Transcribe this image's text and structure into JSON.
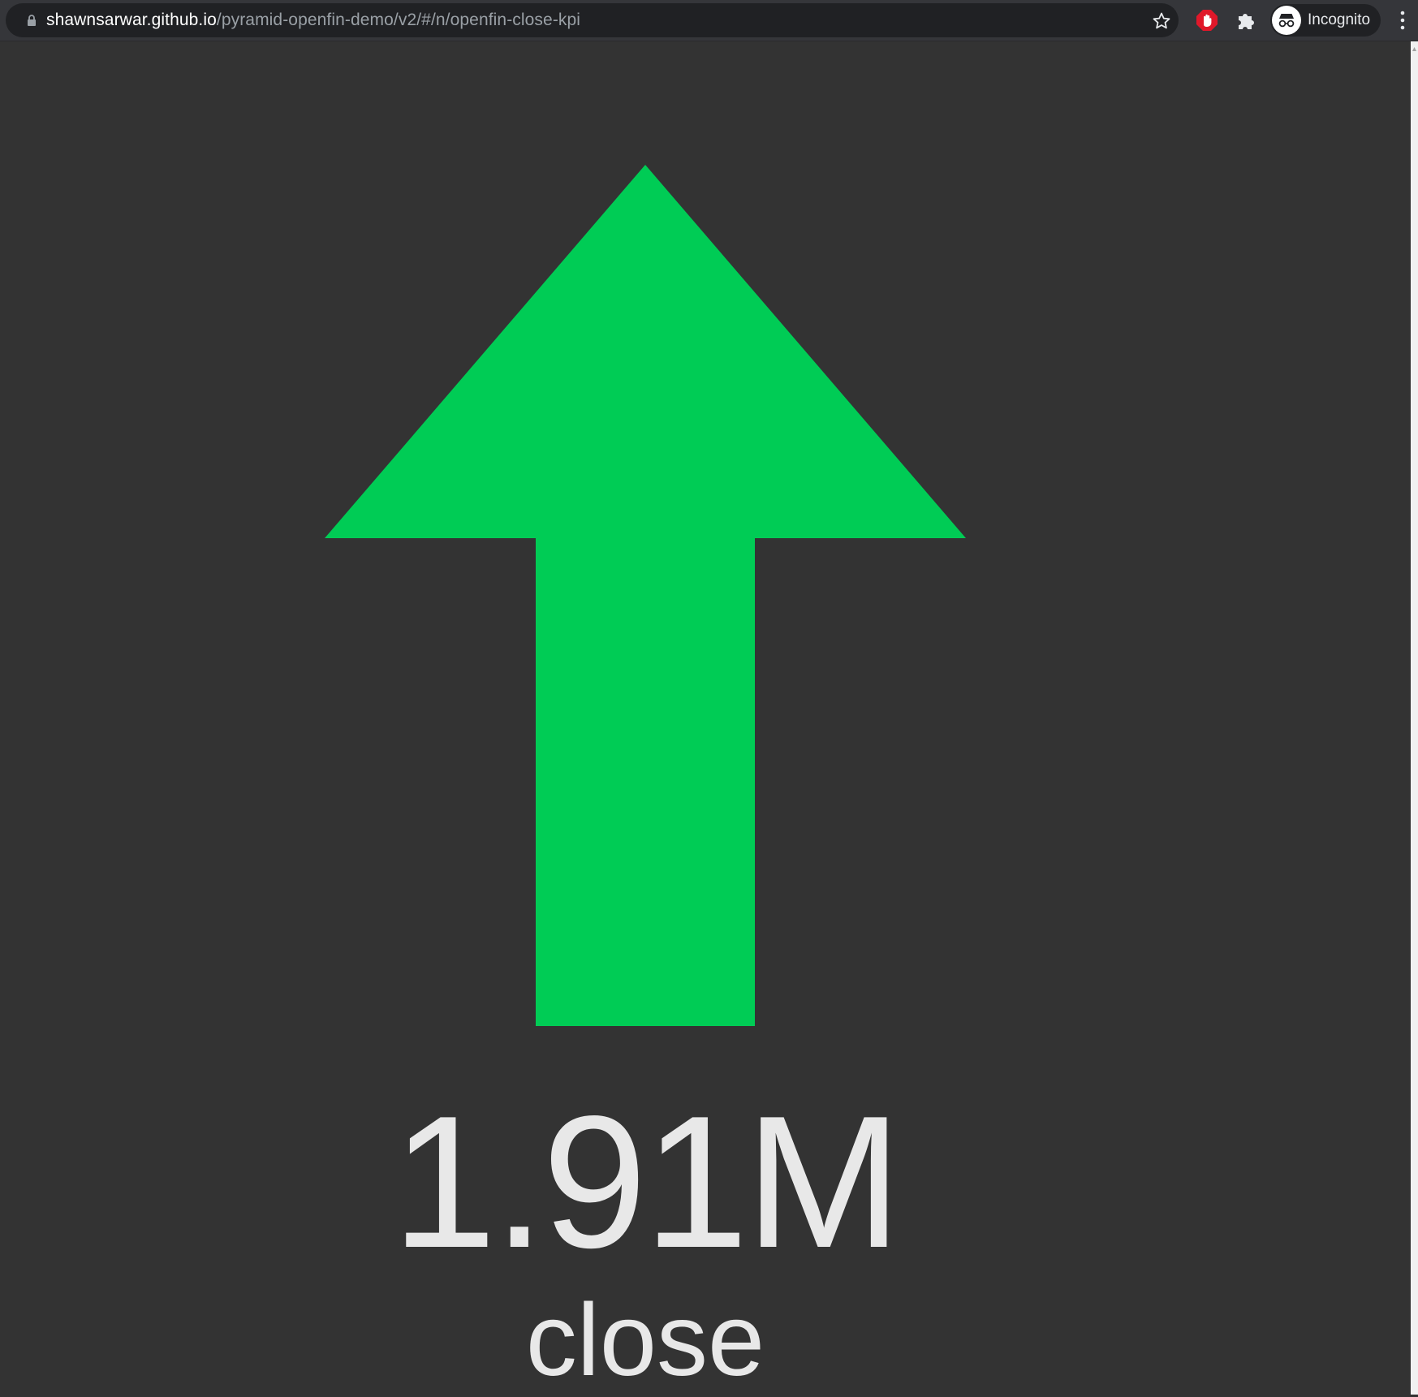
{
  "browser": {
    "url_host": "shawnsarwar.github.io",
    "url_path": "/pyramid-openfin-demo/v2/#/n/openfin-close-kpi",
    "profile_label": "Incognito",
    "icons": {
      "lock": "lock-icon",
      "bookmark": "star-icon",
      "extension_1": "stop-hand-icon",
      "extensions": "puzzle-icon",
      "profile": "incognito-icon",
      "menu": "kebab-menu-icon"
    }
  },
  "kpi": {
    "direction": "up",
    "direction_icon": "arrow-up-icon",
    "arrow_color": "#00cc55",
    "value": "1.91M",
    "label": "close",
    "text_color": "#e8e8e8",
    "background_color": "#333333"
  }
}
